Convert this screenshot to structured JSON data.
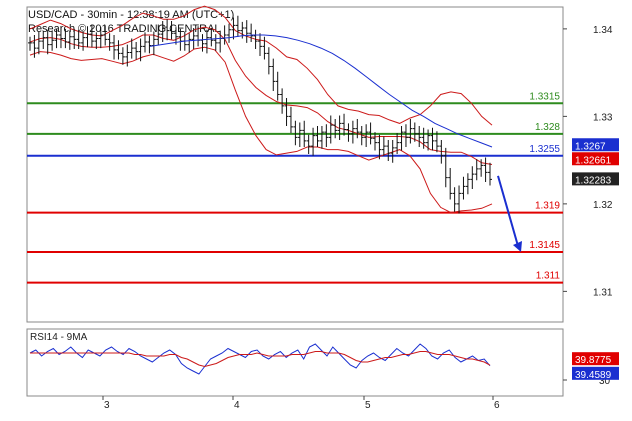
{
  "header": {
    "title": "USD/CAD - 30min - 12:38:19 AM (UTC+1)",
    "subtitle": "Research © 2016 TRADING CENTRAL"
  },
  "chart_data": [
    {
      "type": "candlestick",
      "instrument": "USD/CAD",
      "timeframe": "30min",
      "y_axis_side": "right",
      "ylim": [
        1.3065,
        1.3425
      ],
      "y_ticks": [
        1.34,
        1.33,
        1.32,
        1.31
      ],
      "x_ticks": [
        "3",
        "4",
        "5",
        "6"
      ],
      "grid": false,
      "close_series": [
        1.3384,
        1.3378,
        1.3386,
        1.339,
        1.3382,
        1.3387,
        1.3393,
        1.3389,
        1.3385,
        1.3391,
        1.3388,
        1.3384,
        1.339,
        1.3394,
        1.3386,
        1.3389,
        1.3393,
        1.3388,
        1.3384,
        1.3376,
        1.3372,
        1.3368,
        1.3373,
        1.3378,
        1.3374,
        1.338,
        1.3385,
        1.3381,
        1.3388,
        1.3394,
        1.3402,
        1.3398,
        1.3395,
        1.3391,
        1.3386,
        1.3382,
        1.3388,
        1.3392,
        1.3387,
        1.3383,
        1.339,
        1.3387,
        1.3384,
        1.3389,
        1.3393,
        1.3399,
        1.3404,
        1.3398,
        1.3401,
        1.3395,
        1.3392,
        1.3386,
        1.338,
        1.3372,
        1.3357,
        1.334,
        1.3325,
        1.3312,
        1.33,
        1.3288,
        1.3276,
        1.3284,
        1.3272,
        1.3266,
        1.3278,
        1.3272,
        1.3282,
        1.3276,
        1.329,
        1.3284,
        1.3292,
        1.3285,
        1.328,
        1.3286,
        1.3282,
        1.3276,
        1.3282,
        1.3275,
        1.327,
        1.3262,
        1.3266,
        1.3258,
        1.3264,
        1.327,
        1.3282,
        1.3276,
        1.3286,
        1.328,
        1.3276,
        1.327,
        1.3278,
        1.3272,
        1.3266,
        1.3255,
        1.323,
        1.3212,
        1.32,
        1.3212,
        1.322,
        1.3228,
        1.3234,
        1.324,
        1.3244,
        1.3236,
        1.3228
      ],
      "bollinger": {
        "upper": [
          1.34,
          1.3405,
          1.341,
          1.3406,
          1.34,
          1.3396,
          1.3393,
          1.3392,
          1.3398,
          1.3404,
          1.3412,
          1.3418,
          1.3415,
          1.3411,
          1.3411,
          1.3415,
          1.3422,
          1.3426,
          1.3422,
          1.3413,
          1.3398,
          1.3392,
          1.3388,
          1.3386,
          1.3378,
          1.3368,
          1.3365,
          1.3355,
          1.3342,
          1.3325,
          1.3312,
          1.3308,
          1.3306,
          1.3302,
          1.3301,
          1.3296,
          1.3292,
          1.3298,
          1.3302,
          1.3312,
          1.3325,
          1.3328,
          1.3326,
          1.3315,
          1.33,
          1.329
        ],
        "lower": [
          1.337,
          1.3374,
          1.3373,
          1.337,
          1.3366,
          1.3364,
          1.3365,
          1.3366,
          1.3363,
          1.336,
          1.3363,
          1.3368,
          1.3371,
          1.3367,
          1.3363,
          1.3369,
          1.3377,
          1.3379,
          1.3376,
          1.3362,
          1.333,
          1.33,
          1.3278,
          1.3262,
          1.3256,
          1.3258,
          1.326,
          1.3265,
          1.3265,
          1.3262,
          1.3262,
          1.326,
          1.3255,
          1.325,
          1.3254,
          1.3258,
          1.3262,
          1.3255,
          1.324,
          1.3212,
          1.3196,
          1.319,
          1.3192,
          1.3193,
          1.3195,
          1.32
        ],
        "mid": [
          1.3385,
          1.3389,
          1.339,
          1.3388,
          1.3383,
          1.338,
          1.3379,
          1.3379,
          1.338,
          1.3382,
          1.3387,
          1.3393,
          1.3393,
          1.3389,
          1.3387,
          1.3392,
          1.3399,
          1.3402,
          1.3399,
          1.3388,
          1.3364,
          1.3346,
          1.3333,
          1.3324,
          1.3317,
          1.3313,
          1.3312,
          1.331,
          1.3304,
          1.3294,
          1.3287,
          1.3284,
          1.328,
          1.3276,
          1.3277,
          1.3277,
          1.3277,
          1.3276,
          1.3271,
          1.3262,
          1.326,
          1.3259,
          1.3259,
          1.3254,
          1.3247,
          1.3245
        ]
      },
      "moving_average": [
        1.338,
        1.3382,
        1.3384,
        1.3386,
        1.3387,
        1.3388,
        1.3389,
        1.339,
        1.3392,
        1.3393,
        1.3393,
        1.3392,
        1.339,
        1.3387,
        1.3383,
        1.3378,
        1.3372,
        1.3364,
        1.3355,
        1.3345,
        1.3335,
        1.3325,
        1.3316,
        1.3307,
        1.33,
        1.3292,
        1.3286,
        1.328,
        1.3275,
        1.327,
        1.3265
      ],
      "levels": [
        {
          "value": 1.3315,
          "label": "1.3315",
          "color": "#2e8b1e"
        },
        {
          "value": 1.328,
          "label": "1.328",
          "color": "#2e8b1e"
        },
        {
          "value": 1.3255,
          "label": "1.3255",
          "color": "#1a2fd0"
        },
        {
          "value": 1.319,
          "label": "1.319",
          "color": "#e00000"
        },
        {
          "value": 1.3145,
          "label": "1.3145",
          "color": "#e00000"
        },
        {
          "value": 1.311,
          "label": "1.311",
          "color": "#e00000"
        }
      ],
      "price_tags": [
        {
          "label": "1.3267",
          "color": "#1a2fd0",
          "value": 1.3267
        },
        {
          "label": "1.32661",
          "color": "#e00000",
          "value": 1.3251
        },
        {
          "label": "1.32283",
          "color": "#222222",
          "value": 1.3228
        }
      ],
      "forecast_arrow": {
        "direction": "down",
        "color": "#1a2fd0",
        "from": 1.3232,
        "to": 1.3145
      },
      "colors": {
        "candles": "#111111",
        "bollinger": "#cc1a1a",
        "moving_average": "#1a2fd0"
      }
    },
    {
      "type": "line",
      "title": "RSI14 - 9MA",
      "ylim": [
        22,
        58
      ],
      "y_ticks": [
        30
      ],
      "series": [
        {
          "name": "RSI14",
          "color": "#1a2fd0",
          "values": [
            48,
            50,
            46,
            49,
            51,
            47,
            49,
            52,
            48,
            45,
            50,
            48,
            46,
            50,
            52,
            49,
            47,
            51,
            49,
            46,
            44,
            42,
            45,
            48,
            50,
            47,
            41,
            38,
            36,
            34,
            39,
            44,
            46,
            48,
            51,
            49,
            47,
            45,
            49,
            50,
            46,
            44,
            47,
            49,
            45,
            48,
            50,
            44,
            52,
            54,
            50,
            46,
            52,
            48,
            44,
            40,
            38,
            43,
            46,
            48,
            45,
            43,
            47,
            51,
            48,
            46,
            50,
            54,
            51,
            46,
            44,
            48,
            50,
            45,
            42,
            44,
            46,
            43,
            44,
            39.4589
          ]
        },
        {
          "name": "9MA",
          "color": "#cc1a1a",
          "values": [
            48,
            48,
            48,
            48,
            48,
            48,
            48,
            48,
            48,
            48,
            48,
            48,
            48,
            48,
            48,
            48,
            48,
            48,
            47,
            47,
            46,
            46,
            46,
            46,
            47,
            47,
            45,
            44,
            42,
            40,
            39,
            40,
            41,
            43,
            45,
            46,
            47,
            47,
            47,
            48,
            47,
            46,
            46,
            46,
            46,
            47,
            47,
            47,
            48,
            49,
            49,
            48,
            48,
            48,
            47,
            45,
            43,
            42,
            42,
            43,
            44,
            45,
            45,
            46,
            47,
            47,
            48,
            49,
            49,
            48,
            47,
            47,
            47,
            46,
            45,
            44,
            44,
            43,
            42,
            39.8775
          ]
        }
      ],
      "value_tags": [
        {
          "label": "39.8775",
          "color": "#e00000"
        },
        {
          "label": "39.4589",
          "color": "#1a2fd0"
        }
      ]
    }
  ]
}
